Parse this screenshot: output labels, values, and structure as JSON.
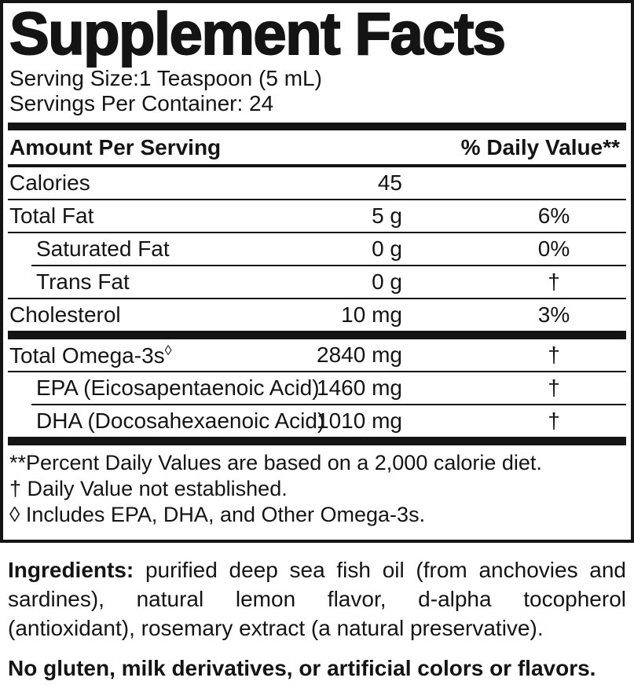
{
  "title": "Supplement Facts",
  "serving": {
    "size_line": "Serving Size:1 Teaspoon (5 mL)",
    "per_container_line": "Servings Per Container: 24"
  },
  "table": {
    "amount_header": "Amount Per Serving",
    "dv_header": "% Daily Value**",
    "rows": [
      {
        "label": "Calories",
        "amount": "45",
        "dv": ""
      },
      {
        "label": "Total Fat",
        "amount": "5 g",
        "dv": "6%"
      },
      {
        "label": "Saturated Fat",
        "amount": "0 g",
        "dv": "0%"
      },
      {
        "label": "Trans Fat",
        "amount": "0 g",
        "dv": "†"
      },
      {
        "label": "Cholesterol",
        "amount": "10 mg",
        "dv": "3%"
      },
      {
        "label": "Total Omega-3s",
        "label_symbol": "◊",
        "amount": "2840 mg",
        "dv": "†"
      },
      {
        "label": "EPA (Eicosapentaenoic Acid)",
        "amount": "1460 mg",
        "dv": "†"
      },
      {
        "label": "DHA (Docosahexaenoic Acid)",
        "amount": "1010 mg",
        "dv": "†"
      }
    ]
  },
  "footnotes": [
    "**Percent Daily Values are based on a 2,000 calorie diet.",
    "† Daily Value not established.",
    "◊ Includes EPA, DHA, and Other Omega-3s."
  ],
  "ingredients": {
    "label": "Ingredients:",
    "text": "purified deep sea fish oil (from anchovies and sardines), natural lemon flavor, d-alpha tocopherol (antioxidant), rosemary extract (a natural preservative)."
  },
  "allergen_statement": "No gluten, milk derivatives, or artificial colors or flavors.",
  "colors": {
    "ink": "#141414",
    "background": "#ffffff"
  }
}
